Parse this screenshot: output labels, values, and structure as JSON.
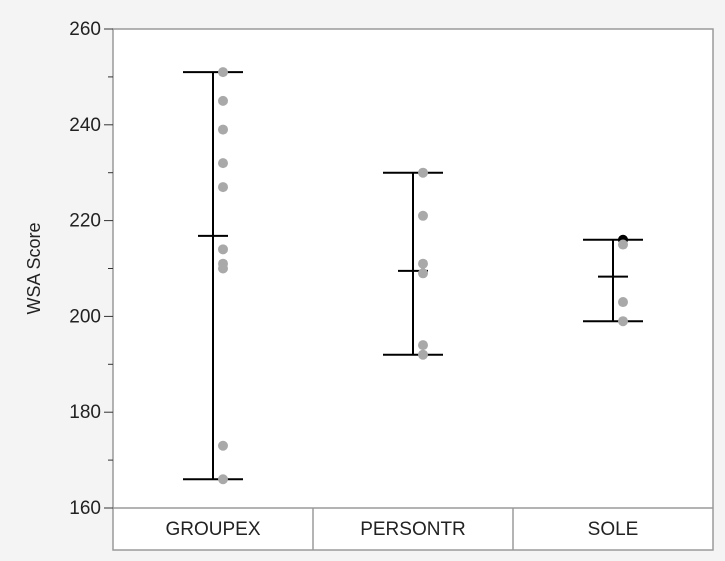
{
  "chart_data": {
    "type": "scatter",
    "ylabel": "WSA Score",
    "xlabel": "",
    "ylim": [
      160,
      260
    ],
    "y_ticks": [
      160,
      180,
      200,
      220,
      240,
      260
    ],
    "categories": [
      "GROUPEX",
      "PERSONTR",
      "SOLE"
    ],
    "grid": false,
    "groups": [
      {
        "category": "GROUPEX",
        "points": [
          251,
          245,
          239,
          232,
          227,
          214,
          211,
          210,
          173,
          166
        ],
        "mean": 216.8,
        "upper": 251,
        "lower": 166
      },
      {
        "category": "PERSONTR",
        "points": [
          230,
          221,
          211,
          209,
          194,
          192
        ],
        "mean": 209.5,
        "upper": 230,
        "lower": 192
      },
      {
        "category": "SOLE",
        "points": [
          216,
          215,
          203,
          199
        ],
        "mean": 208.3,
        "upper": 216,
        "lower": 199,
        "highlighted_point": 216
      }
    ],
    "colors": {
      "point": "#a9a9a9",
      "highlight_point": "#000000",
      "whisker": "#000000",
      "frame": "#9a9a9a",
      "plot_bg": "#ffffff"
    }
  }
}
